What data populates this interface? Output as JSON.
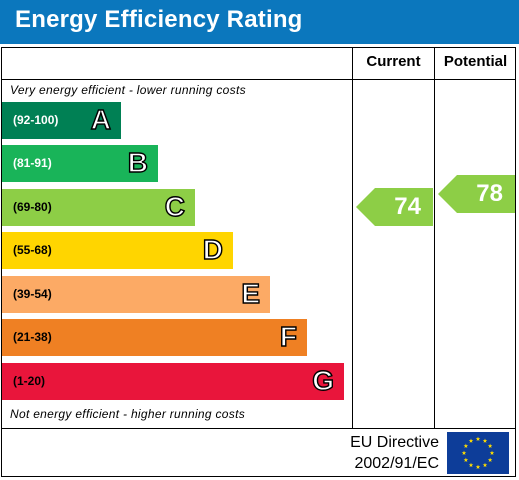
{
  "header": {
    "title": "Energy Efficiency Rating"
  },
  "columns": {
    "current": "Current",
    "potential": "Potential"
  },
  "notes": {
    "top": "Very energy efficient - lower running costs",
    "bottom": "Not energy efficient - higher running costs"
  },
  "bands": [
    {
      "range": "(92-100)",
      "letter": "A",
      "color": "#008054",
      "text_color": "#ffffff"
    },
    {
      "range": "(81-91)",
      "letter": "B",
      "color": "#19b459",
      "text_color": "#ffffff"
    },
    {
      "range": "(69-80)",
      "letter": "C",
      "color": "#8dce46",
      "text_color": "#000000"
    },
    {
      "range": "(55-68)",
      "letter": "D",
      "color": "#ffd500",
      "text_color": "#000000"
    },
    {
      "range": "(39-54)",
      "letter": "E",
      "color": "#fcaa65",
      "text_color": "#000000"
    },
    {
      "range": "(21-38)",
      "letter": "F",
      "color": "#ef8023",
      "text_color": "#000000"
    },
    {
      "range": "(1-20)",
      "letter": "G",
      "color": "#e9153b",
      "text_color": "#000000"
    }
  ],
  "ratings": {
    "current": {
      "value": "74",
      "band": "C",
      "color": "#8dce46"
    },
    "potential": {
      "value": "78",
      "band": "C",
      "color": "#8dce46"
    }
  },
  "footer": {
    "directive_line1": "EU Directive",
    "directive_line2": "2002/91/EC"
  },
  "colors": {
    "header": "#0b77bd",
    "eu_flag": "#0d3d99",
    "eu_stars": "#ffdd00"
  }
}
